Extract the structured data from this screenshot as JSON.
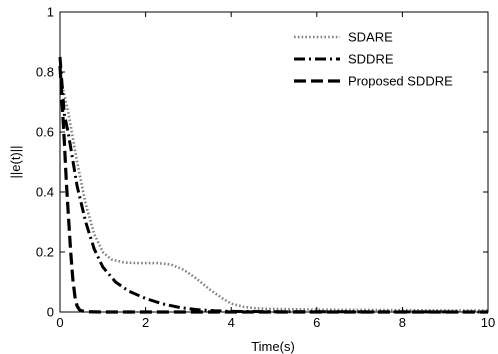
{
  "chart_data": {
    "type": "line",
    "xlabel": "Time(s)",
    "ylabel": "||e(t)||",
    "xlim": [
      0,
      10
    ],
    "ylim": [
      0,
      1
    ],
    "xticks": [
      "0",
      "2",
      "4",
      "6",
      "8",
      "10"
    ],
    "yticks": [
      "0",
      "0.2",
      "0.4",
      "0.6",
      "0.8",
      "1"
    ],
    "grid": false,
    "legend_position": "top-right",
    "series": [
      {
        "name": "SDARE",
        "style": "dotted",
        "color": "#808080",
        "x": [
          0,
          0.2,
          0.4,
          0.6,
          0.8,
          1.0,
          1.2,
          1.5,
          1.8,
          2.0,
          2.3,
          2.6,
          2.9,
          3.2,
          3.5,
          3.8,
          4.0,
          4.3,
          4.6,
          5.0,
          6.0,
          8.0,
          10.0
        ],
        "y": [
          0.79,
          0.66,
          0.5,
          0.36,
          0.26,
          0.2,
          0.175,
          0.165,
          0.163,
          0.163,
          0.163,
          0.158,
          0.14,
          0.11,
          0.075,
          0.045,
          0.028,
          0.017,
          0.012,
          0.01,
          0.008,
          0.006,
          0.005
        ]
      },
      {
        "name": "SDDRE",
        "style": "dashdot",
        "color": "#000000",
        "x": [
          0,
          0.1,
          0.2,
          0.4,
          0.6,
          0.8,
          1.0,
          1.3,
          1.6,
          2.0,
          2.4,
          2.8,
          3.2,
          3.6,
          4.0,
          5.0,
          10.0
        ],
        "y": [
          0.85,
          0.66,
          0.59,
          0.42,
          0.3,
          0.21,
          0.15,
          0.1,
          0.07,
          0.045,
          0.027,
          0.015,
          0.008,
          0.004,
          0.002,
          0.001,
          0.0
        ]
      },
      {
        "name": "Proposed SDDRE",
        "style": "dashed",
        "color": "#000000",
        "x": [
          0,
          0.05,
          0.1,
          0.15,
          0.2,
          0.25,
          0.3,
          0.35,
          0.4,
          0.45,
          0.5,
          0.6,
          1.0,
          10.0
        ],
        "y": [
          0.82,
          0.7,
          0.57,
          0.43,
          0.31,
          0.2,
          0.11,
          0.05,
          0.02,
          0.008,
          0.004,
          0.001,
          0.0,
          0.0
        ]
      }
    ]
  }
}
